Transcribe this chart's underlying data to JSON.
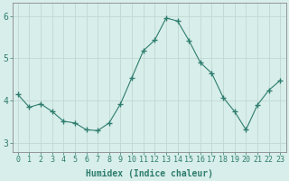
{
  "x": [
    0,
    1,
    2,
    3,
    4,
    5,
    6,
    7,
    8,
    9,
    10,
    11,
    12,
    13,
    14,
    15,
    16,
    17,
    18,
    19,
    20,
    21,
    22,
    23
  ],
  "y": [
    4.15,
    3.85,
    3.93,
    3.75,
    3.52,
    3.48,
    3.32,
    3.3,
    3.48,
    3.93,
    4.55,
    5.18,
    5.43,
    5.95,
    5.88,
    5.42,
    4.9,
    4.65,
    4.08,
    3.75,
    3.32,
    3.9,
    4.25,
    4.48
  ],
  "line_color": "#2E7D6E",
  "marker": "+",
  "marker_size": 4,
  "bg_color": "#D8EEEA",
  "grid_color": "#C0D8D2",
  "axis_color": "#888888",
  "xlabel": "Humidex (Indice chaleur)",
  "xlabel_fontsize": 7,
  "tick_fontsize": 6,
  "ylim": [
    2.8,
    6.3
  ],
  "yticks": [
    3,
    4,
    5,
    6
  ],
  "xticks": [
    0,
    1,
    2,
    3,
    4,
    5,
    6,
    7,
    8,
    9,
    10,
    11,
    12,
    13,
    14,
    15,
    16,
    17,
    18,
    19,
    20,
    21,
    22,
    23
  ]
}
